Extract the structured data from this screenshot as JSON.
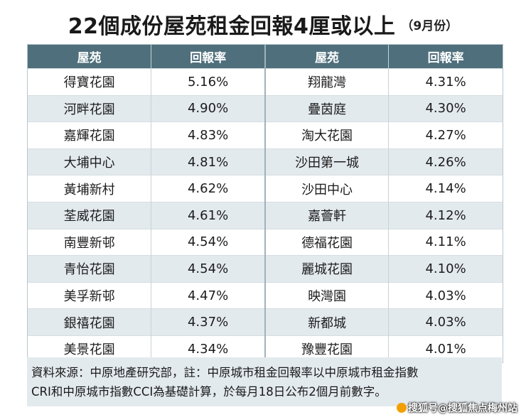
{
  "header": {
    "title": "22個成份屋苑租金回報4厘或以上",
    "subtitle": "（9月份）"
  },
  "table": {
    "columns": [
      "屋苑",
      "回報率",
      "屋苑",
      "回報率"
    ],
    "rows": [
      [
        "得寶花園",
        "5.16%",
        "翔龍灣",
        "4.31%"
      ],
      [
        "河畔花園",
        "4.90%",
        "疊茵庭",
        "4.30%"
      ],
      [
        "嘉輝花園",
        "4.83%",
        "淘大花園",
        "4.27%"
      ],
      [
        "大埔中心",
        "4.81%",
        "沙田第一城",
        "4.26%"
      ],
      [
        "黃埔新村",
        "4.62%",
        "沙田中心",
        "4.14%"
      ],
      [
        "荃威花園",
        "4.61%",
        "嘉薈軒",
        "4.12%"
      ],
      [
        "南豐新邨",
        "4.54%",
        "德福花園",
        "4.11%"
      ],
      [
        "青怡花園",
        "4.54%",
        "麗城花園",
        "4.10%"
      ],
      [
        "美孚新邨",
        "4.47%",
        "映灣園",
        "4.03%"
      ],
      [
        "銀禧花園",
        "4.37%",
        "新都城",
        "4.03%"
      ],
      [
        "美景花園",
        "4.34%",
        "豫豐花園",
        "4.01%"
      ]
    ]
  },
  "note": {
    "line1": "資料來源：中原地產研究部，註：中原城市租金回報率以中原城市租金指數",
    "line2": "CRI和中原城市指數CCI為基礎計算，於每月18日公布2個月前數字。"
  },
  "watermark": {
    "text": "搜狐号@搜狐焦点梅州站"
  }
}
